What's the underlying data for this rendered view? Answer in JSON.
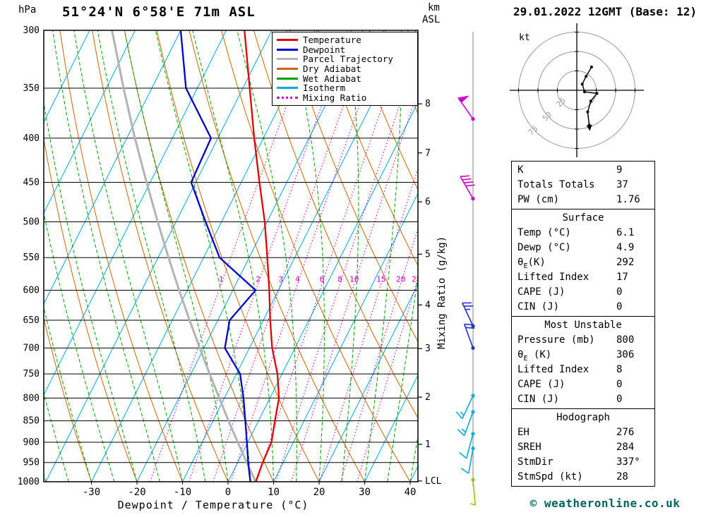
{
  "header": {
    "station": "51°24'N 6°58'E 71m ASL",
    "datetime": "29.01.2022 12GMT (Base: 12)"
  },
  "axes": {
    "pressure_unit": "hPa",
    "km_unit": "km",
    "km_unit_sub": "ASL",
    "x_label": "Dewpoint / Temperature (°C)",
    "mixing_axis_label": "Mixing Ratio (g/kg)"
  },
  "legend": [
    {
      "label": "Temperature",
      "color": "#e00000",
      "style": "solid"
    },
    {
      "label": "Dewpoint",
      "color": "#0000cc",
      "style": "solid"
    },
    {
      "label": "Parcel Trajectory",
      "color": "#b3b3b3",
      "style": "solid"
    },
    {
      "label": "Dry Adiabat",
      "color": "#cc6600",
      "style": "solid"
    },
    {
      "label": "Wet Adiabat",
      "color": "#00a000",
      "style": "solid"
    },
    {
      "label": "Isotherm",
      "color": "#00aadd",
      "style": "solid"
    },
    {
      "label": "Mixing Ratio",
      "color": "#cc00cc",
      "style": "dotted"
    }
  ],
  "chart_data": {
    "type": "skewt_log_p_sounding",
    "title": "51°24'N 6°58'E 71m ASL",
    "x_axis": {
      "label": "Dewpoint / Temperature (°C)",
      "ticks": [
        -30,
        -20,
        -10,
        0,
        10,
        20,
        30,
        40
      ],
      "surface_range_c": [
        -40,
        42
      ]
    },
    "y_axis": {
      "label": "hPa",
      "scale": "log",
      "ticks": [
        300,
        350,
        400,
        450,
        500,
        550,
        600,
        650,
        700,
        750,
        800,
        850,
        900,
        950,
        1000
      ],
      "range": [
        300,
        1000
      ]
    },
    "isotherm_step_c": 10,
    "dry_adiabat_step_c": 10,
    "wet_adiabat_step_c": 5,
    "mixing_ratio_lines_g_kg": [
      1,
      2,
      3,
      4,
      6,
      8,
      10,
      15,
      20,
      25
    ],
    "km_ticks": [
      {
        "label": "8",
        "p_hpa": 365
      },
      {
        "label": "7",
        "p_hpa": 416
      },
      {
        "label": "6",
        "p_hpa": 474
      },
      {
        "label": "5",
        "p_hpa": 545
      },
      {
        "label": "4",
        "p_hpa": 624
      },
      {
        "label": "3",
        "p_hpa": 701
      },
      {
        "label": "2",
        "p_hpa": 798
      },
      {
        "label": "1",
        "p_hpa": 905
      },
      {
        "label": "LCL",
        "p_hpa": 998
      }
    ],
    "pressure_hpa": [
      1000,
      950,
      900,
      850,
      800,
      750,
      700,
      650,
      600,
      550,
      500,
      450,
      400,
      350,
      300
    ],
    "series": [
      {
        "name": "Temperature",
        "color": "#e00000",
        "values_c": [
          6.1,
          5.5,
          5.2,
          3.6,
          2.0,
          -1.0,
          -5.0,
          -8.5,
          -12.0,
          -16.0,
          -20.5,
          -26.0,
          -32.0,
          -38.5,
          -46.0
        ]
      },
      {
        "name": "Dewpoint",
        "color": "#0000cc",
        "values_c": [
          4.9,
          2.3,
          -0.2,
          -2.9,
          -5.8,
          -9.2,
          -15.4,
          -17.4,
          -15.0,
          -26.5,
          -33.5,
          -41.0,
          -41.5,
          -52.5,
          -60.0
        ]
      },
      {
        "name": "Parcel Trajectory",
        "color": "#b3b3b3",
        "values_c": [
          6.1,
          2.0,
          -2.2,
          -6.6,
          -11.1,
          -15.9,
          -20.9,
          -26.2,
          -31.8,
          -37.7,
          -44.0,
          -50.8,
          -58.2,
          -66.2,
          -75.1
        ]
      }
    ],
    "colors": {
      "isotherm": "#00aadd",
      "dry_adiabat": "#cc6600",
      "wet_adiabat": "#00a000",
      "mixing_ratio": "#cc00cc",
      "grid": "#000000"
    }
  },
  "wind_profile": {
    "staff_color": "#999999",
    "barbs": [
      {
        "p_hpa": 380,
        "speed_kt": 50,
        "dir_deg": 325,
        "color": "#cc00cc"
      },
      {
        "p_hpa": 470,
        "speed_kt": 40,
        "dir_deg": 330,
        "color": "#cc00cc"
      },
      {
        "p_hpa": 660,
        "speed_kt": 25,
        "dir_deg": 335,
        "color": "#2233cc"
      },
      {
        "p_hpa": 700,
        "speed_kt": 20,
        "dir_deg": 340,
        "color": "#2233cc"
      },
      {
        "p_hpa": 795,
        "speed_kt": 15,
        "dir_deg": 205,
        "color": "#00aadd"
      },
      {
        "p_hpa": 830,
        "speed_kt": 15,
        "dir_deg": 200,
        "color": "#00aadd"
      },
      {
        "p_hpa": 880,
        "speed_kt": 10,
        "dir_deg": 195,
        "color": "#00aadd"
      },
      {
        "p_hpa": 915,
        "speed_kt": 10,
        "dir_deg": 190,
        "color": "#00aadd"
      },
      {
        "p_hpa": 995,
        "speed_kt": 5,
        "dir_deg": 175,
        "color": "#88cc00"
      }
    ]
  },
  "hodograph": {
    "unit": "kt",
    "rings_kt": [
      25,
      50,
      75
    ],
    "trace_uv_kt": [
      [
        19,
        30
      ],
      [
        12,
        18
      ],
      [
        7,
        8
      ],
      [
        10,
        -2
      ],
      [
        26,
        -4
      ],
      [
        18,
        -14
      ],
      [
        14,
        -28
      ],
      [
        16,
        -45
      ]
    ]
  },
  "panels": [
    {
      "rows": [
        {
          "label": "K",
          "value": "9"
        },
        {
          "label": "Totals Totals",
          "value": "37"
        },
        {
          "label": "PW (cm)",
          "value": "1.76"
        }
      ]
    },
    {
      "title": "Surface",
      "rows": [
        {
          "label": "Temp (°C)",
          "value": "6.1"
        },
        {
          "label": "Dewp (°C)",
          "value": "4.9"
        },
        {
          "label_pre": "θ",
          "label_sub": "E",
          "label_post": "(K)",
          "value": "292"
        },
        {
          "label": "Lifted Index",
          "value": "17"
        },
        {
          "label": "CAPE (J)",
          "value": "0"
        },
        {
          "label": "CIN (J)",
          "value": "0"
        }
      ]
    },
    {
      "title": "Most Unstable",
      "rows": [
        {
          "label": "Pressure (mb)",
          "value": "800"
        },
        {
          "label_pre": "θ",
          "label_sub": "E",
          "label_post": " (K)",
          "value": "306"
        },
        {
          "label": "Lifted Index",
          "value": "8"
        },
        {
          "label": "CAPE (J)",
          "value": "0"
        },
        {
          "label": "CIN (J)",
          "value": "0"
        }
      ]
    },
    {
      "title": "Hodograph",
      "rows": [
        {
          "label": "EH",
          "value": "276"
        },
        {
          "label": "SREH",
          "value": "284"
        },
        {
          "label": "StmDir",
          "value": "337°"
        },
        {
          "label": "StmSpd (kt)",
          "value": "28"
        }
      ]
    }
  ],
  "footer": {
    "copyright": "© weatheronline.co.uk"
  }
}
